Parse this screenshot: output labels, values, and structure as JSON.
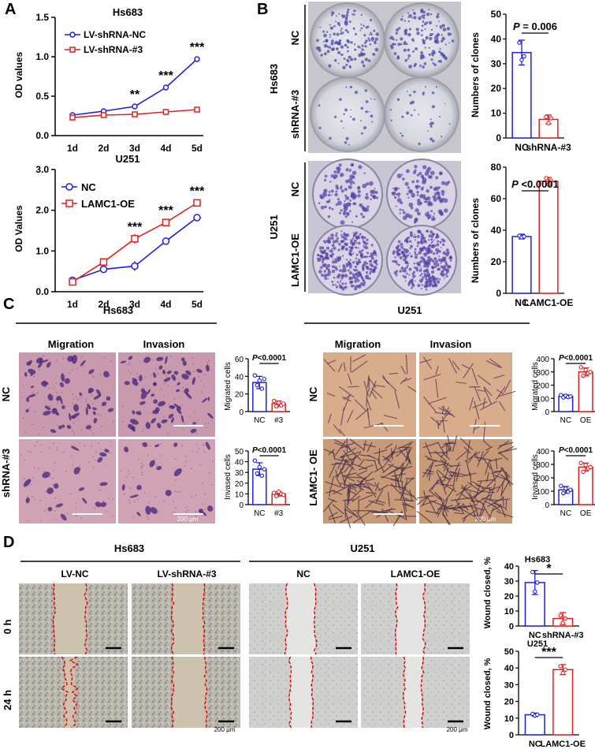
{
  "panels": {
    "A": {
      "label": "A",
      "top": {
        "title": "Hs683",
        "ylabel": "OD values",
        "yticks": [
          "0.0",
          "0.5",
          "1.0",
          "1.5"
        ],
        "xticks": [
          "1d",
          "2d",
          "3d",
          "4d",
          "5d"
        ],
        "legend": [
          "LV-shRNA-NC",
          "LV-shRNA-#3"
        ],
        "sig": [
          "**",
          "***",
          "***"
        ]
      },
      "bottom": {
        "title": "U251",
        "ylabel": "OD Values",
        "yticks": [
          "0.0",
          "1.0",
          "2.0",
          "3.0"
        ],
        "xticks": [
          "1d",
          "2d",
          "3d",
          "4d",
          "5d"
        ],
        "legend": [
          "NC",
          "LAMC1-OE"
        ],
        "sig": [
          "***",
          "***",
          "***"
        ]
      }
    },
    "B": {
      "label": "B",
      "hs683": {
        "cell": "Hs683",
        "rows": [
          "NC",
          "shRNA-#3"
        ],
        "ylabel": "Numbers of clones",
        "yticks": [
          "0",
          "10",
          "20",
          "30",
          "40",
          "50"
        ],
        "xticks": [
          "NC",
          "shRNA-#3"
        ],
        "p": "P = 0.006"
      },
      "u251": {
        "cell": "U251",
        "rows": [
          "NC",
          "LAMC1-OE"
        ],
        "ylabel": "Numbers of clones",
        "yticks": [
          "0",
          "20",
          "40",
          "60",
          "80"
        ],
        "xticks": [
          "NC",
          "LAMC1-OE"
        ],
        "p": "P <0.0001"
      }
    },
    "C": {
      "label": "C",
      "hs683": {
        "cell": "Hs683",
        "cols": [
          "Migration",
          "Invasion"
        ],
        "rows": [
          "NC",
          "shRNA-#3"
        ],
        "mig": {
          "ylabel": "Migrated cells",
          "yticks": [
            "0",
            "20",
            "40",
            "60"
          ],
          "xticks": [
            "NC",
            "#3"
          ],
          "p": "P<0.0001"
        },
        "inv": {
          "ylabel": "Invased cells",
          "yticks": [
            "0",
            "10",
            "20",
            "30",
            "40",
            "50"
          ],
          "xticks": [
            "NC",
            "#3"
          ],
          "p": "P<0.0001"
        },
        "scale": "200 μm"
      },
      "u251": {
        "cell": "U251",
        "cols": [
          "Migration",
          "Invasion"
        ],
        "rows": [
          "NC",
          "LAMC1- OE"
        ],
        "mig": {
          "ylabel": "Migrated cells",
          "yticks": [
            "0",
            "100",
            "200",
            "300",
            "400"
          ],
          "xticks": [
            "NC",
            "OE"
          ],
          "p": "P<0.0001"
        },
        "inv": {
          "ylabel": "Invased cells",
          "yticks": [
            "0",
            "100",
            "200",
            "300",
            "400"
          ],
          "xticks": [
            "NC",
            "OE"
          ],
          "p": "P<0.0001"
        },
        "scale": "200 μm"
      }
    },
    "D": {
      "label": "D",
      "groups": [
        "Hs683",
        "U251"
      ],
      "cols": [
        "LV-NC",
        "LV-shRNA-#3",
        "NC",
        "LAMC1-OE"
      ],
      "rows": [
        "0 h",
        "24 h"
      ],
      "scale": "200 μm",
      "hs683": {
        "title": "Hs683",
        "ylabel": "Wound closed, %",
        "yticks": [
          "0",
          "10",
          "20",
          "30",
          "40"
        ],
        "xticks": [
          "NC",
          "shRNA-#3"
        ],
        "sig": "*"
      },
      "u251": {
        "title": "U251",
        "ylabel": "Wound closed, %",
        "yticks": [
          "0",
          "10",
          "20",
          "30",
          "40",
          "50"
        ],
        "xticks": [
          "NC",
          "LAMC1-OE"
        ],
        "sig": "***"
      }
    }
  },
  "colors": {
    "blue": "#1f1fe0",
    "red": "#e02020",
    "stain_hs": "#c99aae",
    "stain_u": "#d9ad8c",
    "wound": "#e00000"
  },
  "chart_data": [
    {
      "type": "line",
      "title": "Hs683",
      "ylabel": "OD values",
      "x": [
        "1d",
        "2d",
        "3d",
        "4d",
        "5d"
      ],
      "ylim": [
        0,
        1.5
      ],
      "series": [
        {
          "name": "LV-shRNA-NC",
          "values": [
            0.26,
            0.31,
            0.37,
            0.61,
            0.97
          ]
        },
        {
          "name": "LV-shRNA-#3",
          "values": [
            0.23,
            0.26,
            0.27,
            0.3,
            0.33
          ]
        }
      ]
    },
    {
      "type": "line",
      "title": "U251",
      "ylabel": "OD Values",
      "x": [
        "1d",
        "2d",
        "3d",
        "4d",
        "5d"
      ],
      "ylim": [
        0,
        3
      ],
      "series": [
        {
          "name": "NC",
          "values": [
            0.28,
            0.55,
            0.63,
            1.24,
            1.82
          ]
        },
        {
          "name": "LAMC1-OE",
          "values": [
            0.24,
            0.73,
            1.3,
            1.7,
            2.18
          ]
        }
      ]
    },
    {
      "type": "bar",
      "ylabel": "Numbers of clones",
      "categories": [
        "NC",
        "shRNA-#3"
      ],
      "values": [
        34.5,
        7.5
      ],
      "ylim": [
        0,
        50
      ],
      "annotation": "P = 0.006"
    },
    {
      "type": "bar",
      "ylabel": "Numbers of clones",
      "categories": [
        "NC",
        "LAMC1-OE"
      ],
      "values": [
        36,
        71
      ],
      "ylim": [
        0,
        80
      ],
      "annotation": "P <0.0001"
    },
    {
      "type": "bar",
      "ylabel": "Migrated cells",
      "categories": [
        "NC",
        "#3"
      ],
      "values": [
        33,
        9
      ],
      "ylim": [
        0,
        60
      ],
      "annotation": "P<0.0001"
    },
    {
      "type": "bar",
      "ylabel": "Invased cells",
      "categories": [
        "NC",
        "#3"
      ],
      "values": [
        33,
        10
      ],
      "ylim": [
        0,
        50
      ],
      "annotation": "P<0.0001"
    },
    {
      "type": "bar",
      "ylabel": "Migrated cells",
      "categories": [
        "NC",
        "OE"
      ],
      "values": [
        115,
        300
      ],
      "ylim": [
        0,
        400
      ],
      "annotation": "P<0.0001"
    },
    {
      "type": "bar",
      "ylabel": "Invased cells",
      "categories": [
        "NC",
        "OE"
      ],
      "values": [
        110,
        280
      ],
      "ylim": [
        0,
        400
      ],
      "annotation": "P<0.0001"
    },
    {
      "type": "bar",
      "title": "Hs683",
      "ylabel": "Wound closed, %",
      "categories": [
        "NC",
        "shRNA-#3"
      ],
      "values": [
        29,
        5
      ],
      "ylim": [
        0,
        40
      ],
      "annotation": "*"
    },
    {
      "type": "bar",
      "title": "U251",
      "ylabel": "Wound closed, %",
      "categories": [
        "NC",
        "LAMC1-OE"
      ],
      "values": [
        12,
        39
      ],
      "ylim": [
        0,
        50
      ],
      "annotation": "***"
    }
  ]
}
